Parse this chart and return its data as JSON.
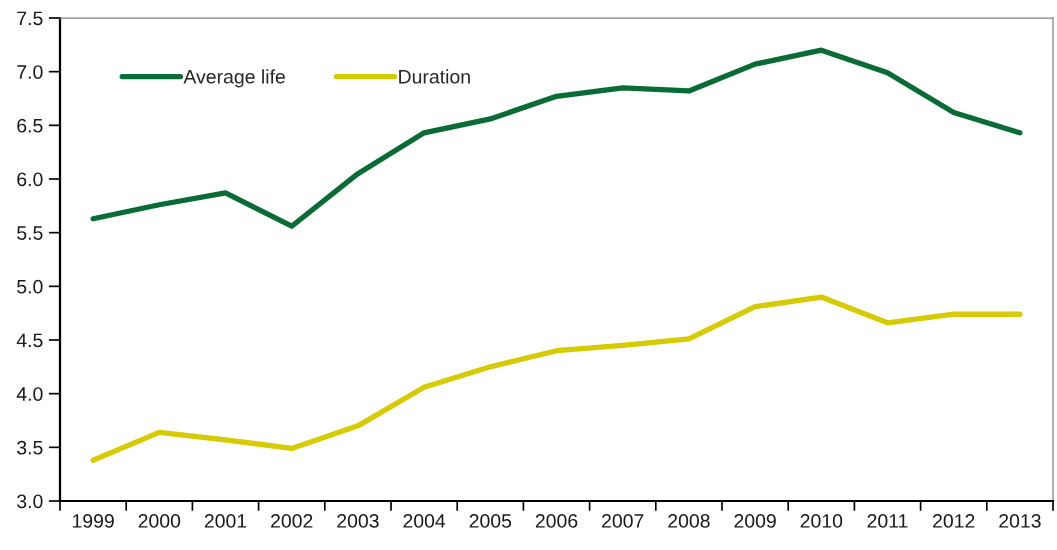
{
  "chart_data": {
    "type": "line",
    "categories": [
      "1999",
      "2000",
      "2001",
      "2002",
      "2003",
      "2004",
      "2005",
      "2006",
      "2007",
      "2008",
      "2009",
      "2010",
      "2011",
      "2012",
      "2013"
    ],
    "series": [
      {
        "name": "Average life",
        "color": "#0a6b37",
        "values": [
          5.63,
          5.76,
          5.87,
          5.56,
          6.05,
          6.43,
          6.56,
          6.77,
          6.85,
          6.82,
          7.07,
          7.2,
          6.99,
          6.62,
          6.43
        ]
      },
      {
        "name": "Duration",
        "color": "#d6ca00",
        "values": [
          3.38,
          3.64,
          3.57,
          3.49,
          3.7,
          4.06,
          4.25,
          4.4,
          4.45,
          4.51,
          4.81,
          4.9,
          4.66,
          4.74,
          4.74
        ]
      }
    ],
    "ylim": [
      3.0,
      7.5
    ],
    "yticks": [
      {
        "value": 3,
        "label": "3.0"
      },
      {
        "value": 3.5,
        "label": "3.5"
      },
      {
        "value": 4,
        "label": "4.0"
      },
      {
        "value": 4.5,
        "label": "4.5"
      },
      {
        "value": 5,
        "label": "5.0"
      },
      {
        "value": 5.5,
        "label": "5.5"
      },
      {
        "value": 6,
        "label": "6.0"
      },
      {
        "value": 6.5,
        "label": "6.5"
      },
      {
        "value": 7,
        "label": "7.0"
      },
      {
        "value": 7.5,
        "label": "7.5"
      }
    ],
    "legend": "top left",
    "marker": "none",
    "line_style": "solid"
  }
}
